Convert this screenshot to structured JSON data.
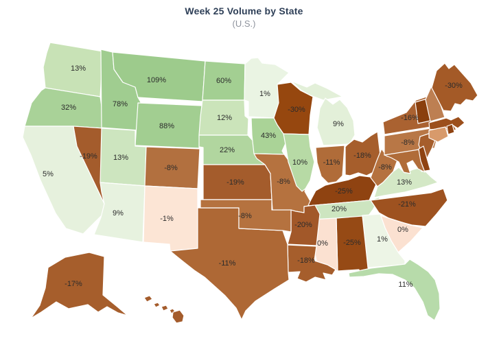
{
  "title": "Week 25 Volume by State",
  "subtitle": "(U.S.)",
  "colors": {
    "title_text": "#2e3f57",
    "subtitle_text": "#8e939d",
    "label_text": "#2b2b2b",
    "state_border": "#ffffff",
    "background": "#ffffff"
  },
  "chart_data": {
    "type": "choropleth",
    "map": "US states",
    "title": "Week 25 Volume by State",
    "subtitle": "(U.S.)",
    "unit": "percent",
    "legend": "none",
    "color_encoding": {
      "positive": "green shades (darker = higher)",
      "near_zero": "pale pink",
      "negative": "brown shades (darker = more negative)"
    },
    "states": [
      {
        "id": "WA",
        "name": "Washington",
        "value": 13,
        "label": "13%",
        "color": "#c8e2b6"
      },
      {
        "id": "OR",
        "name": "Oregon",
        "value": 32,
        "label": "32%",
        "color": "#a9d298"
      },
      {
        "id": "CA",
        "name": "California",
        "value": 5,
        "label": "5%",
        "color": "#e6f1dd"
      },
      {
        "id": "NV",
        "name": "Nevada",
        "value": -19,
        "label": "-19%",
        "color": "#a45c2c"
      },
      {
        "id": "ID",
        "name": "Idaho",
        "value": 78,
        "label": "78%",
        "color": "#a0cd90"
      },
      {
        "id": "MT",
        "name": "Montana",
        "value": 109,
        "label": "109%",
        "color": "#9dcb8c"
      },
      {
        "id": "WY",
        "name": "Wyoming",
        "value": 88,
        "label": "88%",
        "color": "#a2ce91"
      },
      {
        "id": "UT",
        "name": "Utah",
        "value": 13,
        "label": "13%",
        "color": "#cde5bf"
      },
      {
        "id": "CO",
        "name": "Colorado",
        "value": -8,
        "label": "-8%",
        "color": "#b2703f"
      },
      {
        "id": "AZ",
        "name": "Arizona",
        "value": 9,
        "label": "9%",
        "color": "#e7f2df"
      },
      {
        "id": "NM",
        "name": "New Mexico",
        "value": -1,
        "label": "-1%",
        "color": "#fce5d5"
      },
      {
        "id": "ND",
        "name": "North Dakota",
        "value": 60,
        "label": "60%",
        "color": "#a3cf92"
      },
      {
        "id": "SD",
        "name": "South Dakota",
        "value": 12,
        "label": "12%",
        "color": "#cbe4ba"
      },
      {
        "id": "NE",
        "name": "Nebraska",
        "value": 22,
        "label": "22%",
        "color": "#b1d69f"
      },
      {
        "id": "KS",
        "name": "Kansas",
        "value": -19,
        "label": "-19%",
        "color": "#a45c2c"
      },
      {
        "id": "MN",
        "name": "Minnesota",
        "value": 1,
        "label": "1%",
        "color": "#eaf4e3"
      },
      {
        "id": "IA",
        "name": "Iowa",
        "value": 43,
        "label": "43%",
        "color": "#aad397"
      },
      {
        "id": "MO",
        "name": "Missouri",
        "value": -8,
        "label": "-8%",
        "color": "#b5723f"
      },
      {
        "id": "WI",
        "name": "Wisconsin",
        "value": -30,
        "label": "-30%",
        "color": "#96470f"
      },
      {
        "id": "MI",
        "name": "Michigan",
        "value": 9,
        "label": "9%",
        "color": "#e3f0d9"
      },
      {
        "id": "IL",
        "name": "Illinois",
        "value": 10,
        "label": "10%",
        "color": "#b7daa5"
      },
      {
        "id": "IN",
        "name": "Indiana",
        "value": -11,
        "label": "-11%",
        "color": "#b06c39"
      },
      {
        "id": "OH",
        "name": "Ohio",
        "value": -18,
        "label": "-18%",
        "color": "#a65e2c"
      },
      {
        "id": "KY",
        "name": "Kentucky",
        "value": -25,
        "label": "-25%",
        "color": "#8f4311"
      },
      {
        "id": "TN",
        "name": "Tennessee",
        "value": 20,
        "label": "20%",
        "color": "#cde5c0"
      },
      {
        "id": "WV",
        "name": "West Virginia",
        "value": -8,
        "label": "-8%",
        "color": "#b5723f"
      },
      {
        "id": "VA",
        "name": "Virginia",
        "value": 13,
        "label": "13%",
        "color": "#d4e8c6"
      },
      {
        "id": "NC",
        "name": "North Carolina",
        "value": -21,
        "label": "-21%",
        "color": "#9e5220"
      },
      {
        "id": "SC",
        "name": "South Carolina",
        "value": 0,
        "label": "0%",
        "color": "#fbe1d1"
      },
      {
        "id": "GA",
        "name": "Georgia",
        "value": 1,
        "label": "1%",
        "color": "#edf5e6"
      },
      {
        "id": "AL",
        "name": "Alabama",
        "value": -25,
        "label": "-25%",
        "color": "#964a15"
      },
      {
        "id": "MS",
        "name": "Mississippi",
        "value": 0,
        "label": "0%",
        "color": "#fbe1d1"
      },
      {
        "id": "FL",
        "name": "Florida",
        "value": 11,
        "label": "11%",
        "color": "#b7dbaa"
      },
      {
        "id": "LA",
        "name": "Louisiana",
        "value": -18,
        "label": "-18%",
        "color": "#a65e2c"
      },
      {
        "id": "AR",
        "name": "Arkansas",
        "value": -20,
        "label": "-20%",
        "color": "#a25829"
      },
      {
        "id": "TX",
        "name": "Texas",
        "value": -11,
        "label": "-11%",
        "color": "#ae6835"
      },
      {
        "id": "OK",
        "name": "Oklahoma",
        "value": -8,
        "label": "-8%",
        "color": "#b5723f"
      },
      {
        "id": "NY",
        "name": "New York",
        "value": -16,
        "label": "-16%",
        "color": "#aa6231"
      },
      {
        "id": "PA",
        "name": "Pennsylvania",
        "value": -8,
        "label": "-8%",
        "color": "#b87746"
      },
      {
        "id": "NJ",
        "name": "New Jersey",
        "value": null,
        "label": "",
        "color": "#a65e2c"
      },
      {
        "id": "DE",
        "name": "Delaware",
        "value": null,
        "label": "",
        "color": "#8f4311"
      },
      {
        "id": "MD",
        "name": "Maryland",
        "value": null,
        "label": "",
        "color": "#b06c39"
      },
      {
        "id": "VT",
        "name": "Vermont",
        "value": null,
        "label": "",
        "color": "#8a3f0d"
      },
      {
        "id": "NH",
        "name": "New Hampshire",
        "value": null,
        "label": "",
        "color": "#bd7f52"
      },
      {
        "id": "MA",
        "name": "Massachusetts",
        "value": null,
        "label": "",
        "color": "#9c4f1c"
      },
      {
        "id": "CT",
        "name": "Connecticut",
        "value": null,
        "label": "",
        "color": "#d89a6b"
      },
      {
        "id": "RI",
        "name": "Rhode Island",
        "value": null,
        "label": "",
        "color": "#8f4311"
      },
      {
        "id": "ME",
        "name": "Maine",
        "value": -30,
        "label": "-30%",
        "color": "#a45a27"
      },
      {
        "id": "AK",
        "name": "Alaska",
        "value": -17,
        "label": "-17%",
        "color": "#a65e2c"
      },
      {
        "id": "HI",
        "name": "Hawaii",
        "value": null,
        "label": "",
        "color": "#a45c2c"
      }
    ]
  }
}
